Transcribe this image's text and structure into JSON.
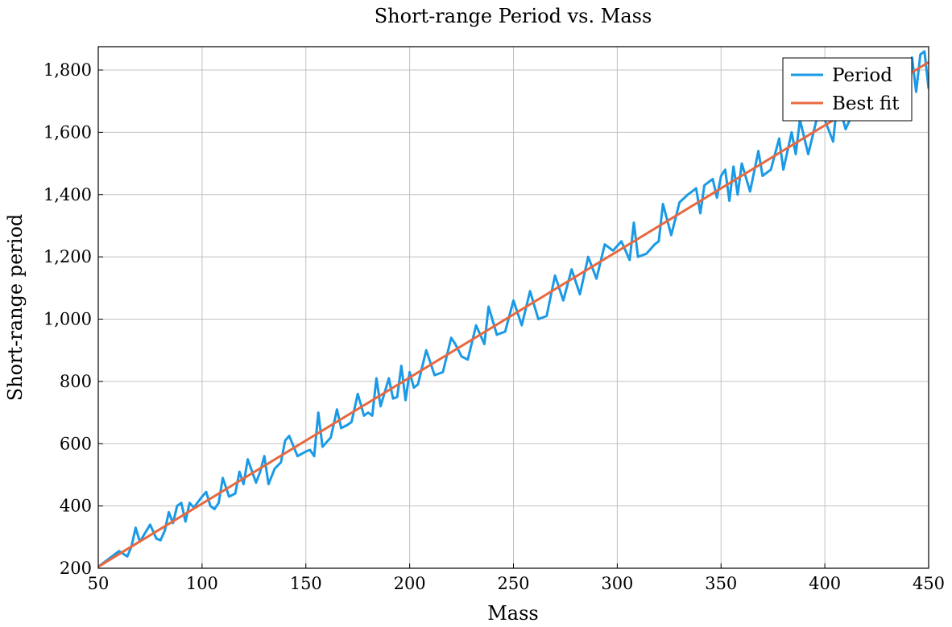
{
  "chart_data": {
    "type": "line",
    "title": "Short-range Period vs. Mass",
    "xlabel": "Mass",
    "ylabel": "Short-range period",
    "xlim": [
      50,
      450
    ],
    "ylim": [
      200,
      1875
    ],
    "xticks": [
      50,
      100,
      150,
      200,
      250,
      300,
      350,
      400,
      450
    ],
    "xtick_labels": [
      "50",
      "100",
      "150",
      "200",
      "250",
      "300",
      "350",
      "400",
      "450"
    ],
    "yticks": [
      200,
      400,
      600,
      800,
      1000,
      1200,
      1400,
      1600,
      1800
    ],
    "ytick_labels": [
      "200",
      "400",
      "600",
      "800",
      "1,000",
      "1,200",
      "1,400",
      "1,600",
      "1,800"
    ],
    "grid": true,
    "legend_position": "top-right",
    "series": [
      {
        "name": "Period",
        "color": "#1a9ae6",
        "x": [
          50,
          60,
          64,
          66,
          68,
          70,
          75,
          78,
          80,
          82,
          84,
          86,
          88,
          90,
          92,
          94,
          96,
          100,
          102,
          104,
          106,
          108,
          110,
          113,
          116,
          118,
          120,
          122,
          126,
          128,
          130,
          132,
          135,
          138,
          140,
          142,
          146,
          150,
          152,
          154,
          156,
          158,
          162,
          165,
          167,
          170,
          172,
          175,
          178,
          180,
          182,
          184,
          186,
          190,
          192,
          194,
          196,
          198,
          200,
          202,
          204,
          208,
          212,
          216,
          220,
          222,
          225,
          228,
          232,
          236,
          238,
          242,
          246,
          250,
          254,
          258,
          262,
          266,
          270,
          274,
          278,
          282,
          286,
          290,
          294,
          298,
          302,
          306,
          308,
          310,
          314,
          318,
          320,
          322,
          326,
          330,
          334,
          336,
          338,
          340,
          342,
          346,
          348,
          350,
          352,
          354,
          356,
          358,
          360,
          364,
          368,
          370,
          374,
          378,
          380,
          384,
          386,
          388,
          392,
          396,
          400,
          404,
          406,
          408,
          410,
          412,
          416,
          420,
          424,
          428,
          432,
          436,
          440,
          442,
          444,
          446,
          448,
          450
        ],
        "y": [
          205,
          255,
          238,
          270,
          330,
          285,
          340,
          295,
          290,
          320,
          380,
          345,
          400,
          410,
          350,
          410,
          395,
          430,
          445,
          400,
          390,
          410,
          490,
          430,
          440,
          510,
          470,
          550,
          475,
          510,
          560,
          470,
          520,
          540,
          610,
          625,
          560,
          575,
          580,
          560,
          700,
          590,
          620,
          710,
          650,
          660,
          670,
          760,
          690,
          700,
          690,
          810,
          720,
          810,
          745,
          750,
          850,
          740,
          830,
          780,
          790,
          900,
          820,
          830,
          940,
          920,
          880,
          870,
          980,
          920,
          1040,
          950,
          960,
          1060,
          980,
          1090,
          1000,
          1010,
          1140,
          1060,
          1160,
          1080,
          1200,
          1130,
          1240,
          1220,
          1250,
          1190,
          1310,
          1200,
          1210,
          1240,
          1250,
          1370,
          1270,
          1375,
          1400,
          1410,
          1420,
          1340,
          1430,
          1450,
          1390,
          1460,
          1480,
          1380,
          1490,
          1400,
          1500,
          1410,
          1540,
          1460,
          1480,
          1580,
          1480,
          1600,
          1530,
          1640,
          1530,
          1640,
          1640,
          1570,
          1700,
          1660,
          1610,
          1640,
          1680,
          1700,
          1720,
          1760,
          1780,
          1760,
          1820,
          1840,
          1730,
          1850,
          1860,
          1740
        ],
        "comment_removed": true
      },
      {
        "name": "Best fit",
        "color": "#e8683f",
        "x": [
          50,
          450
        ],
        "y": [
          205,
          1825
        ]
      }
    ]
  }
}
